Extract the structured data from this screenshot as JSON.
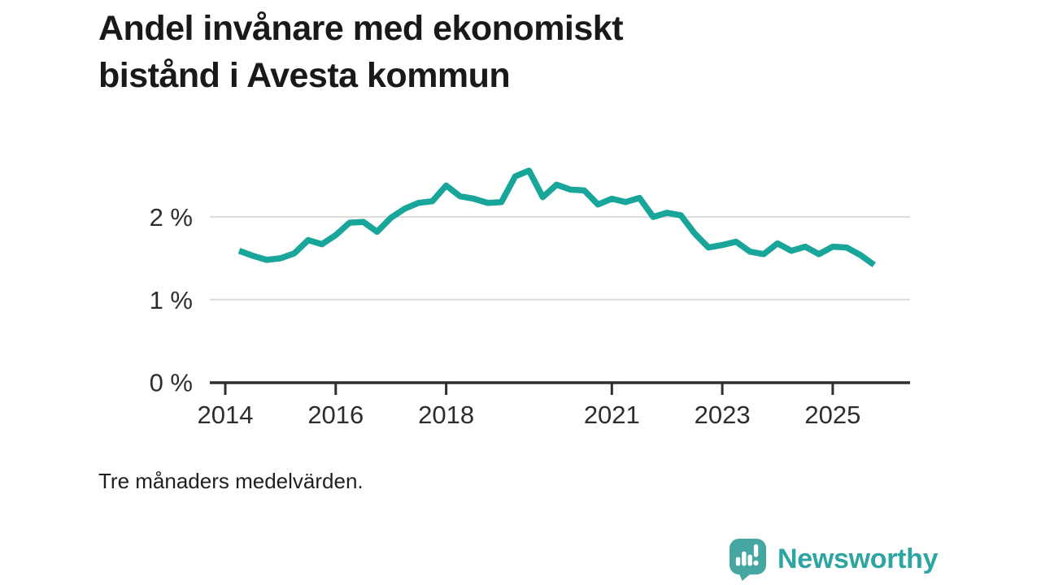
{
  "title": {
    "text": "Andel invånare med ekonomiskt bistånd i Avesta kommun",
    "lines": [
      "Andel invånare med ekonomiskt",
      "bistånd i Avesta kommun"
    ]
  },
  "footnote": "Tre månaders medelvärden.",
  "branding": {
    "name": "Newsworthy",
    "icon": "speech-bubble-bar-chart-exclamation"
  },
  "colors": {
    "line": "#18a69a",
    "grid": "#dcdcdc",
    "axis": "#2e2e2e",
    "tick_text": "#2d2d2d",
    "title_text": "#191919",
    "brand_text": "#2ea5a0",
    "brand_bubble": "#46a6a1",
    "background": "#ffffff"
  },
  "chart_data": {
    "type": "line",
    "title": "Andel invånare med ekonomiskt bistånd i Avesta kommun",
    "note": "Tre månaders medelvärden.",
    "unit": "%",
    "x_unit": "year (quarterly points, three-month rolling averages)",
    "grid": "horizontal",
    "legend": "none",
    "ylim": [
      0,
      2.8
    ],
    "xlim": [
      2013.7,
      2026.4
    ],
    "y_ticks": [
      {
        "value": 0,
        "label": "0 %"
      },
      {
        "value": 1,
        "label": "1 %"
      },
      {
        "value": 2,
        "label": "2 %"
      }
    ],
    "x_ticks": [
      {
        "value": 2014,
        "label": "2014"
      },
      {
        "value": 2016,
        "label": "2016"
      },
      {
        "value": 2018,
        "label": "2018"
      },
      {
        "value": 2021,
        "label": "2021"
      },
      {
        "value": 2023,
        "label": "2023"
      },
      {
        "value": 2025,
        "label": "2025"
      }
    ],
    "series": [
      {
        "name": "Andel invånare med ekonomiskt bistånd, Avesta kommun (%)",
        "x": [
          2014.25,
          2014.5,
          2014.75,
          2015.0,
          2015.25,
          2015.5,
          2015.75,
          2016.0,
          2016.25,
          2016.5,
          2016.75,
          2017.0,
          2017.25,
          2017.5,
          2017.75,
          2018.0,
          2018.25,
          2018.5,
          2018.75,
          2019.0,
          2019.25,
          2019.5,
          2019.75,
          2020.0,
          2020.25,
          2020.5,
          2020.75,
          2021.0,
          2021.25,
          2021.5,
          2021.75,
          2022.0,
          2022.25,
          2022.5,
          2022.75,
          2023.0,
          2023.25,
          2023.5,
          2023.75,
          2024.0,
          2024.25,
          2024.5,
          2024.75,
          2025.0,
          2025.25,
          2025.5,
          2025.75
        ],
        "values": [
          1.59,
          1.53,
          1.48,
          1.5,
          1.56,
          1.72,
          1.67,
          1.78,
          1.93,
          1.94,
          1.82,
          1.99,
          2.1,
          2.17,
          2.19,
          2.38,
          2.25,
          2.22,
          2.17,
          2.18,
          2.49,
          2.56,
          2.24,
          2.39,
          2.33,
          2.32,
          2.15,
          2.22,
          2.18,
          2.23,
          2.0,
          2.05,
          2.02,
          1.8,
          1.63,
          1.66,
          1.7,
          1.58,
          1.55,
          1.68,
          1.59,
          1.64,
          1.55,
          1.64,
          1.63,
          1.54,
          1.42
        ]
      }
    ]
  }
}
